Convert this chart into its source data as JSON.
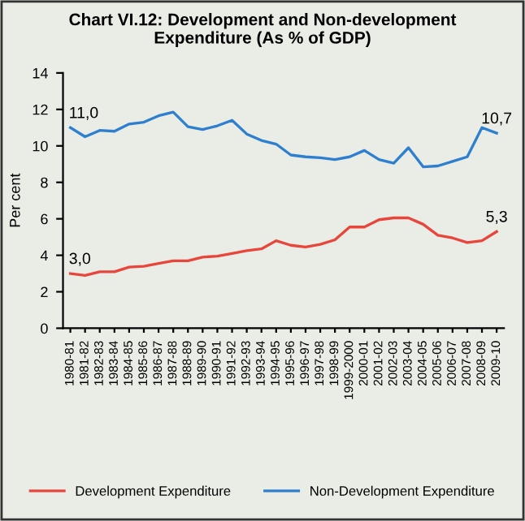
{
  "chart_data": {
    "type": "line",
    "title": "Chart VI.12: Development and Non-development\nExpenditure (As % of GDP)",
    "ylabel": "Per cent",
    "categories": [
      "1980-81",
      "1981-82",
      "1982-83",
      "1983-84",
      "1984-85",
      "1985-86",
      "1986-87",
      "1987-88",
      "1988-89",
      "1989-90",
      "1990-91",
      "1991-92",
      "1992-93",
      "1993-94",
      "1994-95",
      "1995-96",
      "1996-97",
      "1997-98",
      "1998-99",
      "1999-2000",
      "2000-01",
      "2001-02",
      "2002-03",
      "2003-04",
      "2004-05",
      "2005-06",
      "2006-07",
      "2007-08",
      "2008-09",
      "2009-10"
    ],
    "series": [
      {
        "name": "Development Expenditure",
        "color": "#e8453c",
        "values": [
          3.0,
          2.9,
          3.1,
          3.1,
          3.35,
          3.4,
          3.55,
          3.7,
          3.7,
          3.9,
          3.95,
          4.1,
          4.25,
          4.35,
          4.8,
          4.55,
          4.45,
          4.6,
          4.85,
          5.55,
          5.55,
          5.95,
          6.05,
          6.05,
          5.7,
          5.1,
          4.95,
          4.7,
          4.8,
          5.3
        ],
        "value_labels": [
          "3,0",
          null,
          null,
          null,
          null,
          null,
          null,
          null,
          null,
          null,
          null,
          null,
          null,
          null,
          null,
          null,
          null,
          null,
          null,
          null,
          null,
          null,
          null,
          null,
          null,
          null,
          null,
          null,
          null,
          "5,3"
        ]
      },
      {
        "name": "Non-Development Expenditure",
        "color": "#2f7fd0",
        "values": [
          11.0,
          10.5,
          10.85,
          10.8,
          11.2,
          11.3,
          11.65,
          11.85,
          11.05,
          10.9,
          11.1,
          11.4,
          10.65,
          10.3,
          10.1,
          9.5,
          9.4,
          9.35,
          9.25,
          9.4,
          9.75,
          9.25,
          9.05,
          9.9,
          8.85,
          8.9,
          9.15,
          9.4,
          11.0,
          10.7
        ],
        "value_labels": [
          "11,0",
          null,
          null,
          null,
          null,
          null,
          null,
          null,
          null,
          null,
          null,
          null,
          null,
          null,
          null,
          null,
          null,
          null,
          null,
          null,
          null,
          null,
          null,
          null,
          null,
          null,
          null,
          null,
          null,
          "10,7"
        ]
      }
    ],
    "ylim": [
      0,
      14
    ],
    "yticks": [
      0,
      2,
      4,
      6,
      8,
      10,
      12,
      14
    ],
    "grid": false,
    "legend": "bottom",
    "marker": "none",
    "line_style": "solid"
  }
}
